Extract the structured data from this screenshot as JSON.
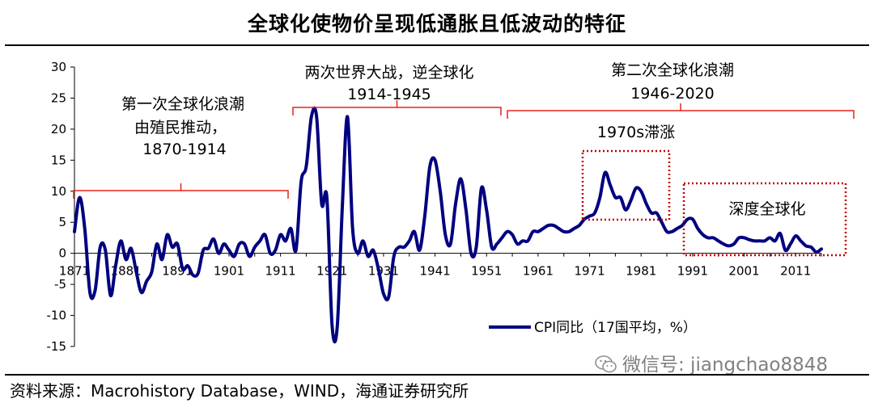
{
  "title": "全球化使物价呈现低通胀且低波动的特征",
  "source": "资料来源：Macrohistory Database，WIND，海通证券研究所",
  "watermark": "微信号: jiangchao8848",
  "colors": {
    "line": "#000080",
    "bracket": "#e8241c",
    "highlight_box": "#c00000",
    "axis": "#000000"
  },
  "annotations": {
    "wave1": [
      "第一次全球化浪潮",
      "由殖民推动，",
      "1870-1914"
    ],
    "ww": [
      "两次世界大战，逆全球化",
      "1914-1945"
    ],
    "wave2": [
      "第二次全球化浪潮",
      "1946-2020"
    ],
    "stagflation": "1970s滞涨",
    "deep": "深度全球化"
  },
  "chart_data": {
    "type": "line",
    "xlim": [
      1871,
      2016
    ],
    "ylim": [
      -15,
      30
    ],
    "y_ticks": [
      30,
      25,
      20,
      15,
      10,
      5,
      0,
      -5,
      -10,
      -15
    ],
    "x_tick_labels": [
      "1871",
      "1881",
      "1891",
      "1901",
      "1911",
      "1921",
      "1931",
      "1941",
      "1951",
      "1961",
      "1971",
      "1981",
      "1991",
      "2001",
      "2011"
    ],
    "legend": {
      "label": "CPI同比（17国平均，%）",
      "placement": "bottom-right"
    },
    "grid": false,
    "series": [
      {
        "name": "CPI同比（17国平均，%）",
        "x": [
          1871,
          1872,
          1873,
          1874,
          1875,
          1876,
          1877,
          1878,
          1879,
          1880,
          1881,
          1882,
          1883,
          1884,
          1885,
          1886,
          1887,
          1888,
          1889,
          1890,
          1891,
          1892,
          1893,
          1894,
          1895,
          1896,
          1897,
          1898,
          1899,
          1900,
          1901,
          1902,
          1903,
          1904,
          1905,
          1906,
          1907,
          1908,
          1909,
          1910,
          1911,
          1912,
          1913,
          1914,
          1915,
          1916,
          1917,
          1918,
          1919,
          1920,
          1921,
          1922,
          1923,
          1924,
          1925,
          1926,
          1927,
          1928,
          1929,
          1930,
          1931,
          1932,
          1933,
          1934,
          1935,
          1936,
          1937,
          1938,
          1939,
          1940,
          1941,
          1942,
          1943,
          1944,
          1945,
          1946,
          1947,
          1948,
          1949,
          1950,
          1951,
          1952,
          1953,
          1954,
          1955,
          1956,
          1957,
          1958,
          1959,
          1960,
          1961,
          1962,
          1963,
          1964,
          1965,
          1966,
          1967,
          1968,
          1969,
          1970,
          1971,
          1972,
          1973,
          1974,
          1975,
          1976,
          1977,
          1978,
          1979,
          1980,
          1981,
          1982,
          1983,
          1984,
          1985,
          1986,
          1987,
          1988,
          1989,
          1990,
          1991,
          1992,
          1993,
          1994,
          1995,
          1996,
          1997,
          1998,
          1999,
          2000,
          2001,
          2002,
          2003,
          2004,
          2005,
          2006,
          2007,
          2008,
          2009,
          2010,
          2011,
          2012,
          2013,
          2014,
          2015,
          2016
        ],
        "y": [
          3.5,
          9.0,
          4.0,
          -6.3,
          -6.0,
          1.0,
          0.5,
          -6.8,
          -2.0,
          2.0,
          -1.0,
          0.8,
          -3.0,
          -6.3,
          -4.5,
          -3.0,
          1.5,
          -1.0,
          3.0,
          1.0,
          1.5,
          -2.5,
          -2.0,
          -3.5,
          -3.2,
          0.5,
          0.8,
          2.3,
          0.0,
          1.5,
          0.5,
          -0.5,
          1.5,
          1.5,
          -0.5,
          1.0,
          2.0,
          3.0,
          0.0,
          0.5,
          3.0,
          2.0,
          4.0,
          0.5,
          11.5,
          14.0,
          22.0,
          22.0,
          8.0,
          9.0,
          -11.5,
          -12.0,
          7.5,
          22.0,
          4.0,
          0.0,
          2.0,
          -0.5,
          0.5,
          -2.5,
          -6.5,
          -7.0,
          -0.5,
          1.0,
          1.0,
          2.0,
          3.5,
          0.5,
          6.0,
          14.0,
          15.0,
          10.0,
          3.0,
          1.5,
          8.0,
          12.0,
          7.0,
          0.0,
          1.0,
          10.5,
          7.0,
          1.0,
          1.5,
          2.5,
          3.5,
          3.0,
          1.5,
          2.0,
          2.0,
          3.5,
          3.5,
          4.0,
          4.5,
          4.5,
          4.0,
          3.5,
          3.5,
          4.0,
          4.5,
          5.5,
          6.0,
          6.5,
          9.0,
          13.0,
          11.0,
          9.0,
          9.0,
          7.0,
          8.5,
          10.5,
          10.0,
          8.0,
          6.5,
          6.5,
          5.0,
          3.5,
          3.5,
          4.0,
          4.5,
          5.5,
          5.5,
          4.0,
          3.0,
          2.5,
          2.5,
          2.0,
          1.5,
          1.2,
          1.5,
          2.5,
          2.5,
          2.2,
          2.0,
          2.0,
          2.0,
          2.5,
          2.0,
          3.2,
          0.5,
          1.5,
          2.8,
          2.0,
          1.2,
          1.0,
          0.2,
          0.7
        ]
      }
    ]
  }
}
